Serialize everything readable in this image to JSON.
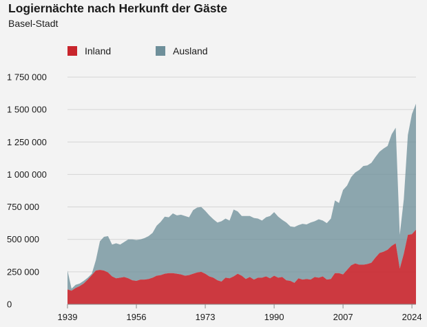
{
  "title": "Logiernächte nach Herkunft der Gäste",
  "subtitle": "Basel-Stadt",
  "chart_data": {
    "type": "area",
    "stacked": true,
    "title": "Logiernächte nach Herkunft der Gäste",
    "subtitle": "Basel-Stadt",
    "xlabel": "",
    "ylabel": "",
    "xlim": [
      1939,
      2025
    ],
    "ylim": [
      0,
      1750000
    ],
    "grid": true,
    "legend_position": "top-left",
    "x_ticks": [
      1939,
      1956,
      1973,
      1990,
      2007,
      2024
    ],
    "x_tick_labels": [
      "1939",
      "1956",
      "1973",
      "1990",
      "2007",
      "2024"
    ],
    "y_ticks": [
      0,
      250000,
      500000,
      750000,
      1000000,
      1250000,
      1500000,
      1750000
    ],
    "y_tick_labels": [
      "0",
      "250 000",
      "500 000",
      "750 000",
      "1 000 000",
      "1 250 000",
      "1 500 000",
      "1 750 000"
    ],
    "x": [
      1939,
      1940,
      1941,
      1942,
      1943,
      1944,
      1945,
      1946,
      1947,
      1948,
      1949,
      1950,
      1951,
      1952,
      1953,
      1954,
      1955,
      1956,
      1957,
      1958,
      1959,
      1960,
      1961,
      1962,
      1963,
      1964,
      1965,
      1966,
      1967,
      1968,
      1969,
      1970,
      1971,
      1972,
      1973,
      1974,
      1975,
      1976,
      1977,
      1978,
      1979,
      1980,
      1981,
      1982,
      1983,
      1984,
      1985,
      1986,
      1987,
      1988,
      1989,
      1990,
      1991,
      1992,
      1993,
      1994,
      1995,
      1996,
      1997,
      1998,
      1999,
      2000,
      2001,
      2002,
      2003,
      2004,
      2005,
      2006,
      2007,
      2008,
      2009,
      2010,
      2011,
      2012,
      2013,
      2014,
      2015,
      2016,
      2017,
      2018,
      2019,
      2020,
      2021,
      2022,
      2023,
      2024,
      2025
    ],
    "series": [
      {
        "name": "Inland",
        "color": "#c8252c",
        "values": [
          115000,
          105000,
          125000,
          140000,
          160000,
          190000,
          225000,
          260000,
          265000,
          260000,
          245000,
          215000,
          200000,
          205000,
          210000,
          200000,
          185000,
          180000,
          190000,
          190000,
          195000,
          205000,
          220000,
          225000,
          235000,
          240000,
          240000,
          235000,
          230000,
          220000,
          225000,
          235000,
          245000,
          250000,
          235000,
          215000,
          205000,
          185000,
          175000,
          205000,
          200000,
          215000,
          235000,
          220000,
          195000,
          210000,
          190000,
          205000,
          205000,
          215000,
          200000,
          220000,
          205000,
          210000,
          185000,
          180000,
          165000,
          200000,
          190000,
          195000,
          190000,
          210000,
          205000,
          215000,
          190000,
          195000,
          240000,
          240000,
          230000,
          265000,
          300000,
          315000,
          305000,
          305000,
          310000,
          320000,
          360000,
          395000,
          405000,
          420000,
          450000,
          470000,
          275000,
          390000,
          535000,
          540000,
          575000
        ]
      },
      {
        "name": "Ausland",
        "color": "#6e8f9a",
        "values": [
          145000,
          15000,
          25000,
          20000,
          20000,
          15000,
          10000,
          80000,
          220000,
          260000,
          280000,
          245000,
          270000,
          255000,
          270000,
          300000,
          315000,
          315000,
          310000,
          320000,
          330000,
          345000,
          385000,
          410000,
          440000,
          430000,
          460000,
          450000,
          460000,
          460000,
          445000,
          490000,
          500000,
          500000,
          485000,
          470000,
          450000,
          445000,
          465000,
          455000,
          445000,
          515000,
          480000,
          460000,
          485000,
          470000,
          475000,
          455000,
          440000,
          455000,
          480000,
          490000,
          470000,
          440000,
          445000,
          420000,
          430000,
          410000,
          430000,
          420000,
          440000,
          430000,
          450000,
          430000,
          435000,
          465000,
          560000,
          540000,
          650000,
          650000,
          680000,
          700000,
          730000,
          760000,
          760000,
          770000,
          775000,
          780000,
          795000,
          800000,
          860000,
          890000,
          260000,
          420000,
          770000,
          925000,
          970000
        ]
      }
    ]
  }
}
